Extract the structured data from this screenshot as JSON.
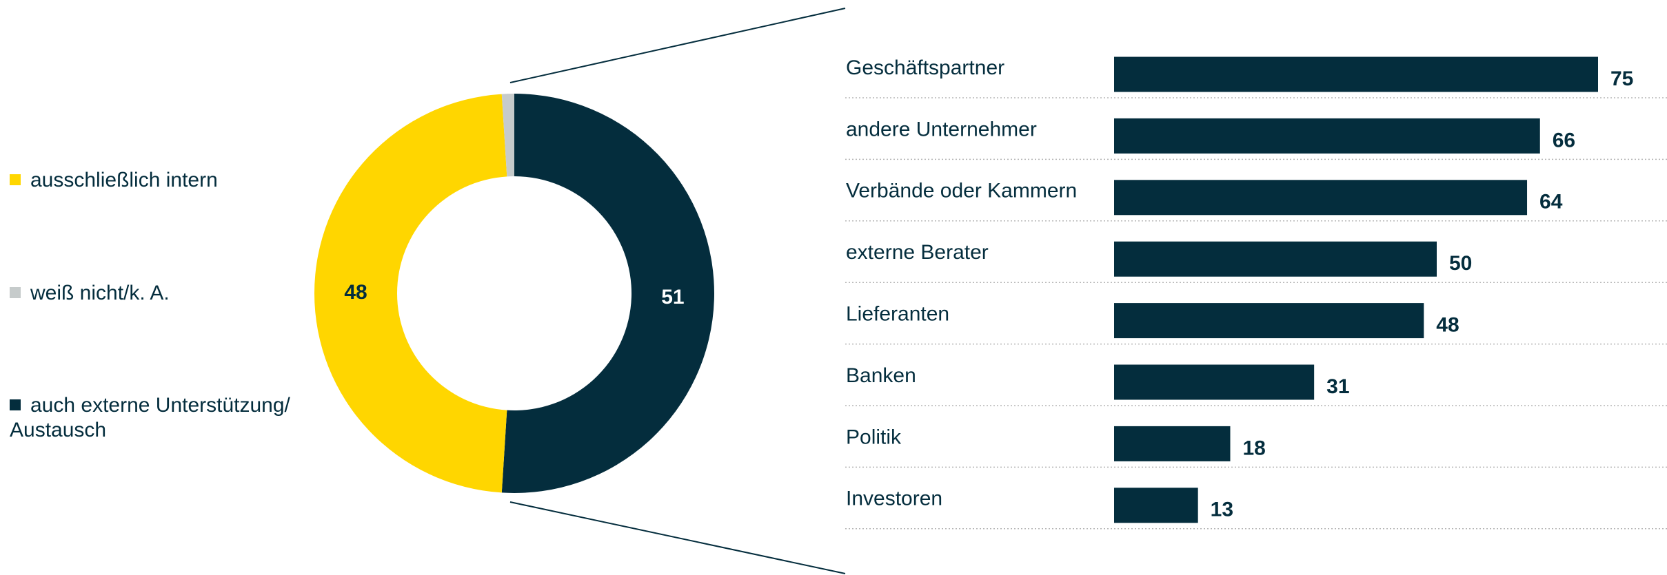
{
  "chart_data": [
    {
      "type": "pie",
      "series": [
        {
          "name": "auch externe Unterstützung/ Austausch",
          "color": "#042d3d",
          "values": [
            51
          ]
        },
        {
          "name": "ausschließlich intern",
          "color": "#ffd600",
          "values": [
            48
          ]
        },
        {
          "name": "weiß nicht/k. A.",
          "color": "#c6cbcb",
          "values": [
            1
          ]
        }
      ],
      "legend_order": [
        1,
        2,
        0
      ]
    },
    {
      "type": "hbar",
      "categories": [
        "Geschäftspartner",
        "andere Unternehmer",
        "Verbände oder Kammern",
        "externe Berater",
        "Lieferanten",
        "Banken",
        "Politik",
        "Investoren"
      ],
      "values": [
        75,
        66,
        64,
        50,
        48,
        31,
        18,
        13
      ],
      "color": "#042d3d"
    }
  ]
}
